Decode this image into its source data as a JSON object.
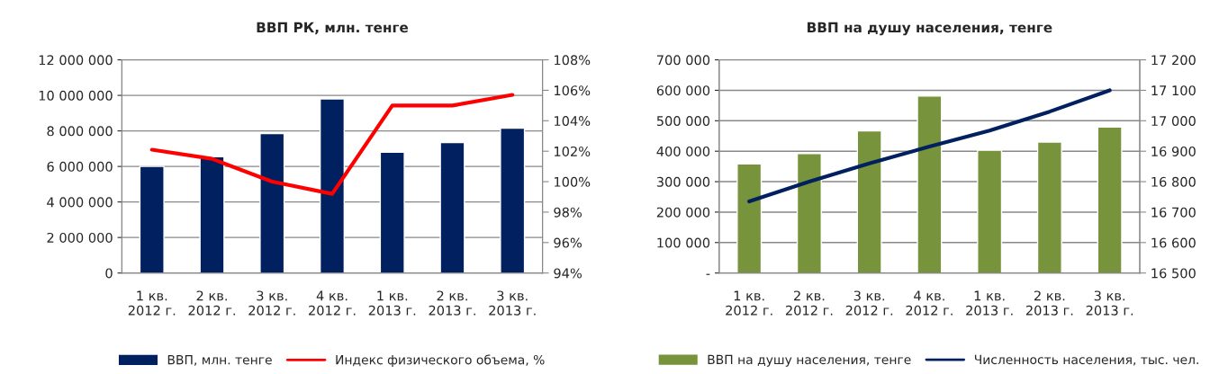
{
  "chart_data": [
    {
      "type": "bar",
      "title": "ВВП РК, млн. тенге",
      "categories": [
        "1 кв.\n2012 г.",
        "2 кв.\n2012 г.",
        "3 кв.\n2012 г.",
        "4 кв.\n2012 г.",
        "1 кв.\n2013 г.",
        "2 кв.\n2013 г.",
        "3 кв.\n2013 г."
      ],
      "series": [
        {
          "name": "ВВП, млн. тенге",
          "color": "#002060",
          "values": [
            6000000,
            6550000,
            7850000,
            9800000,
            6800000,
            7350000,
            8150000
          ]
        },
        {
          "name": "Индекс физического объема, %",
          "type": "line",
          "axis": "y2",
          "color": "#ff0000",
          "values": [
            102.1,
            101.5,
            100.0,
            99.2,
            105.0,
            105.0,
            105.7
          ]
        }
      ],
      "ylim": [
        0,
        12000000
      ],
      "yticks": [
        0,
        {
          "value": 2000000,
          "label": "2 000 000"
        },
        {
          "value": 4000000,
          "label": "4 000 000"
        },
        {
          "value": 6000000,
          "label": "6 000 000"
        },
        {
          "value": 8000000,
          "label": "8 000 000"
        },
        {
          "value": 10000000,
          "label": "10 000 000"
        },
        {
          "value": 12000000,
          "label": "12 000 000"
        }
      ],
      "y2lim": [
        94,
        108
      ],
      "y2ticks": [
        {
          "value": 94,
          "label": "94%"
        },
        {
          "value": 96,
          "label": "96%"
        },
        {
          "value": 98,
          "label": "98%"
        },
        {
          "value": 100,
          "label": "100%"
        },
        {
          "value": 102,
          "label": "102%"
        },
        {
          "value": 104,
          "label": "104%"
        },
        {
          "value": 106,
          "label": "106%"
        },
        {
          "value": 108,
          "label": "108%"
        }
      ],
      "grid": "y",
      "legend": "bottom"
    },
    {
      "type": "bar",
      "title": "ВВП на душу населения, тенге",
      "categories": [
        "1 кв.\n2012 г.",
        "2 кв.\n2012 г.",
        "3 кв.\n2012 г.",
        "4 кв.\n2012 г.",
        "1 кв.\n2013 г.",
        "2 кв.\n2013 г.",
        "3 кв.\n2013 г."
      ],
      "series": [
        {
          "name": "ВВП на душу населения, тенге",
          "color": "#77933c",
          "values": [
            358000,
            392000,
            467000,
            581000,
            403000,
            430000,
            479000
          ]
        },
        {
          "name": "Численность населения, тыс. чел.",
          "type": "line",
          "axis": "y2",
          "color": "#002060",
          "values": [
            16735,
            16800,
            16860,
            16915,
            16968,
            17030,
            17100
          ]
        }
      ],
      "ylim": [
        0,
        700000
      ],
      "yticks": [
        {
          "value": 0,
          "label": "-"
        },
        {
          "value": 100000,
          "label": "100 000"
        },
        {
          "value": 200000,
          "label": "200 000"
        },
        {
          "value": 300000,
          "label": "300 000"
        },
        {
          "value": 400000,
          "label": "400 000"
        },
        {
          "value": 500000,
          "label": "500 000"
        },
        {
          "value": 600000,
          "label": "600 000"
        },
        {
          "value": 700000,
          "label": "700 000"
        }
      ],
      "y2lim": [
        16500,
        17200
      ],
      "y2ticks": [
        {
          "value": 16500,
          "label": "16 500"
        },
        {
          "value": 16600,
          "label": "16 600"
        },
        {
          "value": 16700,
          "label": "16 700"
        },
        {
          "value": 16800,
          "label": "16 800"
        },
        {
          "value": 16900,
          "label": "16 900"
        },
        {
          "value": 17000,
          "label": "17 000"
        },
        {
          "value": 17100,
          "label": "17 100"
        },
        {
          "value": 17200,
          "label": "17 200"
        }
      ],
      "grid": "y",
      "legend": "bottom"
    }
  ]
}
